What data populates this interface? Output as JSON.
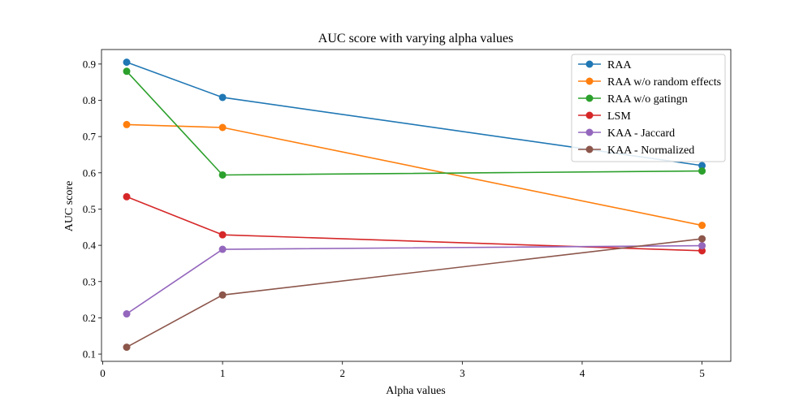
{
  "chart_data": {
    "type": "line",
    "title": "AUC score with varying alpha values",
    "xlabel": "Alpha values",
    "ylabel": "AUC score",
    "xlim": [
      -0.01,
      5.24
    ],
    "ylim": [
      0.08,
      0.94
    ],
    "xticks": [
      "0",
      "1",
      "2",
      "3",
      "4",
      "5"
    ],
    "yticks": [
      "0.1",
      "0.2",
      "0.3",
      "0.4",
      "0.5",
      "0.6",
      "0.7",
      "0.8",
      "0.9"
    ],
    "grid": false,
    "legend_position": "top-right",
    "x": [
      0.2,
      1,
      5
    ],
    "series": [
      {
        "name": "RAA",
        "color": "#1f77b4",
        "values": [
          0.905,
          0.808,
          0.62
        ]
      },
      {
        "name": "RAA w/o random effects",
        "color": "#ff7f0e",
        "values": [
          0.733,
          0.725,
          0.455
        ]
      },
      {
        "name": "RAA w/o gatingn",
        "color": "#2ca02c",
        "values": [
          0.88,
          0.594,
          0.605
        ]
      },
      {
        "name": "LSM",
        "color": "#d62728",
        "values": [
          0.534,
          0.429,
          0.385
        ]
      },
      {
        "name": "KAA - Jaccard",
        "color": "#9467bd",
        "values": [
          0.211,
          0.389,
          0.399
        ]
      },
      {
        "name": "KAA - Normalized",
        "color": "#8c564b",
        "values": [
          0.119,
          0.263,
          0.418
        ]
      }
    ]
  }
}
